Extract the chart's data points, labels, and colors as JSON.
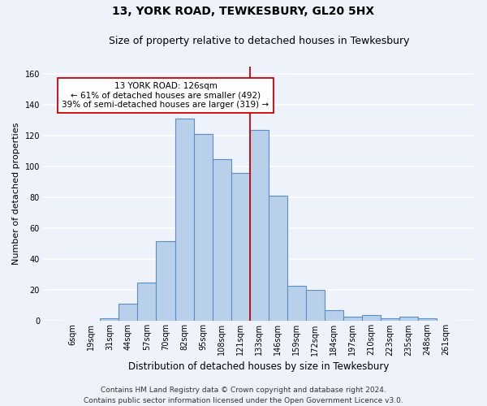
{
  "title": "13, YORK ROAD, TEWKESBURY, GL20 5HX",
  "subtitle": "Size of property relative to detached houses in Tewkesbury",
  "xlabel": "Distribution of detached houses by size in Tewkesbury",
  "ylabel": "Number of detached properties",
  "bin_labels": [
    "6sqm",
    "19sqm",
    "31sqm",
    "44sqm",
    "57sqm",
    "70sqm",
    "82sqm",
    "95sqm",
    "108sqm",
    "121sqm",
    "133sqm",
    "146sqm",
    "159sqm",
    "172sqm",
    "184sqm",
    "197sqm",
    "210sqm",
    "223sqm",
    "235sqm",
    "248sqm",
    "261sqm"
  ],
  "bar_heights": [
    0,
    0,
    2,
    11,
    25,
    52,
    131,
    121,
    105,
    96,
    124,
    81,
    23,
    20,
    7,
    3,
    4,
    2,
    3,
    2,
    0
  ],
  "bar_color": "#b8d0ea",
  "bar_edge_color": "#5b8ec4",
  "vline_x": 9.5,
  "vline_color": "#cc0000",
  "annotation_text": "13 YORK ROAD: 126sqm\n← 61% of detached houses are smaller (492)\n39% of semi-detached houses are larger (319) →",
  "annotation_box_color": "white",
  "annotation_box_edge_color": "#cc0000",
  "ylim": [
    0,
    165
  ],
  "yticks": [
    0,
    20,
    40,
    60,
    80,
    100,
    120,
    140,
    160
  ],
  "footer_line1": "Contains HM Land Registry data © Crown copyright and database right 2024.",
  "footer_line2": "Contains public sector information licensed under the Open Government Licence v3.0.",
  "background_color": "#eef2fb",
  "grid_color": "#ffffff",
  "title_fontsize": 10,
  "subtitle_fontsize": 9,
  "xlabel_fontsize": 8.5,
  "ylabel_fontsize": 8,
  "tick_fontsize": 7,
  "footer_fontsize": 6.5,
  "annot_fontsize": 7.5
}
